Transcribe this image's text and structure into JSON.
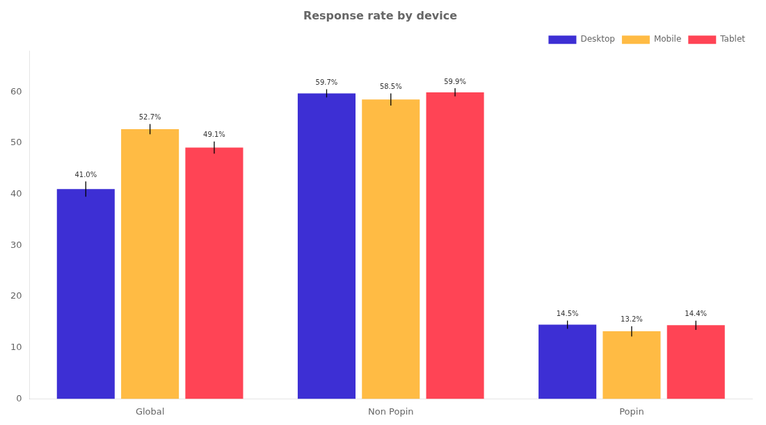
{
  "chart_data": {
    "type": "bar",
    "title": "Response rate by device",
    "categories": [
      "Global",
      "Non Popin",
      "Popin"
    ],
    "series": [
      {
        "name": "Desktop",
        "color": "#3d2fd4",
        "values": [
          41.0,
          59.7,
          14.5
        ],
        "value_labels": [
          "41.0%",
          "59.7%",
          "14.5%"
        ],
        "errors": [
          1.5,
          0.8,
          0.8
        ]
      },
      {
        "name": "Mobile",
        "color": "#ffbb44",
        "values": [
          52.7,
          58.5,
          13.2
        ],
        "value_labels": [
          "52.7%",
          "58.5%",
          "13.2%"
        ],
        "errors": [
          1.0,
          1.2,
          1.0
        ]
      },
      {
        "name": "Tablet",
        "color": "#ff4455",
        "values": [
          49.1,
          59.9,
          14.4
        ],
        "value_labels": [
          "49.1%",
          "59.9%",
          "14.4%"
        ],
        "errors": [
          1.2,
          0.8,
          0.9
        ]
      }
    ],
    "ylim": [
      0,
      68
    ],
    "yticks": [
      0,
      10,
      20,
      30,
      40,
      50,
      60
    ],
    "grid": false,
    "legend": "upper right",
    "data_labels": true
  }
}
